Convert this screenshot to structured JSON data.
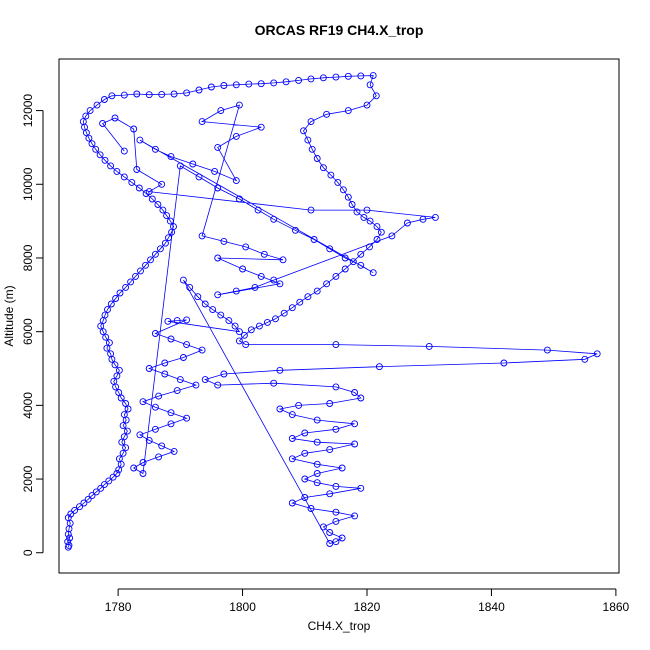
{
  "chart_data": {
    "type": "scatter",
    "title": "ORCAS RF19 CH4.X_trop",
    "xlabel": "CH4.X_trop",
    "ylabel": "Altitude (m)",
    "xlim": [
      1770.5,
      1860.5
    ],
    "ylim": [
      -550,
      13400
    ],
    "xticks": [
      1780,
      1800,
      1820,
      1840,
      1860
    ],
    "yticks": [
      0,
      2000,
      4000,
      6000,
      8000,
      10000,
      12000
    ],
    "color": "#0000ff",
    "grid": false,
    "series": [
      {
        "name": "",
        "points": [
          [
            1772.0,
            150
          ],
          [
            1772.1,
            200
          ],
          [
            1771.9,
            300
          ],
          [
            1772.2,
            400
          ],
          [
            1772.0,
            500
          ],
          [
            1772.1,
            650
          ],
          [
            1772.3,
            800
          ],
          [
            1772.0,
            950
          ],
          [
            1772.4,
            1050
          ],
          [
            1773.0,
            1150
          ],
          [
            1773.8,
            1250
          ],
          [
            1774.5,
            1350
          ],
          [
            1775.2,
            1450
          ],
          [
            1775.8,
            1550
          ],
          [
            1776.5,
            1650
          ],
          [
            1777.2,
            1750
          ],
          [
            1777.8,
            1850
          ],
          [
            1778.5,
            1950
          ],
          [
            1779.2,
            2050
          ],
          [
            1779.8,
            2150
          ],
          [
            1780.1,
            2250
          ],
          [
            1780.5,
            2400
          ],
          [
            1780.2,
            2550
          ],
          [
            1780.8,
            2700
          ],
          [
            1781.2,
            2850
          ],
          [
            1780.6,
            3000
          ],
          [
            1781.0,
            3150
          ],
          [
            1781.5,
            3300
          ],
          [
            1780.8,
            3450
          ],
          [
            1781.3,
            3600
          ],
          [
            1781.0,
            3750
          ],
          [
            1781.6,
            3900
          ],
          [
            1781.2,
            4050
          ],
          [
            1780.5,
            4200
          ],
          [
            1780.1,
            4350
          ],
          [
            1779.6,
            4500
          ],
          [
            1779.3,
            4650
          ],
          [
            1779.8,
            4800
          ],
          [
            1780.2,
            4950
          ],
          [
            1779.5,
            5100
          ],
          [
            1779.0,
            5250
          ],
          [
            1778.8,
            5400
          ],
          [
            1778.2,
            5550
          ],
          [
            1778.6,
            5700
          ],
          [
            1778.0,
            5850
          ],
          [
            1777.6,
            6000
          ],
          [
            1777.2,
            6150
          ],
          [
            1777.6,
            6300
          ],
          [
            1777.9,
            6450
          ],
          [
            1778.3,
            6600
          ],
          [
            1778.9,
            6750
          ],
          [
            1779.6,
            6900
          ],
          [
            1780.3,
            7050
          ],
          [
            1781.2,
            7200
          ],
          [
            1782.0,
            7350
          ],
          [
            1782.8,
            7500
          ],
          [
            1783.6,
            7650
          ],
          [
            1784.4,
            7800
          ],
          [
            1785.2,
            7950
          ],
          [
            1786.0,
            8100
          ],
          [
            1786.8,
            8250
          ],
          [
            1787.6,
            8400
          ],
          [
            1788.1,
            8550
          ],
          [
            1788.6,
            8700
          ],
          [
            1788.9,
            8850
          ],
          [
            1788.4,
            9000
          ],
          [
            1787.8,
            9150
          ],
          [
            1787.2,
            9300
          ],
          [
            1786.4,
            9450
          ],
          [
            1785.5,
            9600
          ],
          [
            1784.5,
            9750
          ],
          [
            1783.4,
            9900
          ],
          [
            1782.2,
            10050
          ],
          [
            1781.0,
            10200
          ],
          [
            1779.8,
            10350
          ],
          [
            1778.8,
            10500
          ],
          [
            1777.9,
            10650
          ],
          [
            1777.1,
            10800
          ],
          [
            1776.4,
            10950
          ],
          [
            1775.8,
            11100
          ],
          [
            1775.3,
            11250
          ],
          [
            1774.9,
            11400
          ],
          [
            1774.6,
            11550
          ],
          [
            1774.4,
            11700
          ],
          [
            1774.8,
            11850
          ],
          [
            1775.5,
            12000
          ],
          [
            1776.6,
            12150
          ],
          [
            1777.8,
            12300
          ],
          [
            1779.0,
            12400
          ],
          [
            1781.0,
            12420
          ],
          [
            1783.0,
            12450
          ],
          [
            1785.0,
            12430
          ],
          [
            1787.0,
            12440
          ],
          [
            1789.0,
            12450
          ],
          [
            1791.0,
            12480
          ],
          [
            1793.0,
            12560
          ],
          [
            1795.0,
            12640
          ],
          [
            1797.0,
            12680
          ],
          [
            1799.0,
            12700
          ],
          [
            1801.0,
            12720
          ],
          [
            1803.0,
            12730
          ],
          [
            1805.0,
            12750
          ],
          [
            1807.0,
            12780
          ],
          [
            1809.0,
            12820
          ],
          [
            1811.0,
            12860
          ],
          [
            1813.0,
            12890
          ],
          [
            1815.0,
            12910
          ],
          [
            1817.0,
            12930
          ],
          [
            1819.0,
            12940
          ],
          [
            1821.0,
            12950
          ],
          [
            1820.5,
            12700
          ],
          [
            1821.5,
            12400
          ],
          [
            1820.0,
            12150
          ],
          [
            1817.0,
            12000
          ],
          [
            1813.5,
            11900
          ],
          [
            1811.0,
            11700
          ],
          [
            1809.8,
            11450
          ],
          [
            1810.5,
            11200
          ],
          [
            1811.2,
            10950
          ],
          [
            1812.0,
            10700
          ],
          [
            1813.0,
            10450
          ],
          [
            1814.2,
            10250
          ],
          [
            1815.3,
            10050
          ],
          [
            1816.2,
            9850
          ],
          [
            1817.0,
            9650
          ],
          [
            1817.6,
            9450
          ],
          [
            1818.4,
            9250
          ],
          [
            1819.5,
            9100
          ],
          [
            1820.5,
            9000
          ],
          [
            1821.6,
            8850
          ],
          [
            1822.3,
            8700
          ],
          [
            1821.6,
            8500
          ],
          [
            1820.4,
            8300
          ],
          [
            1819.0,
            8100
          ],
          [
            1817.8,
            7900
          ],
          [
            1816.5,
            7700
          ],
          [
            1815.0,
            7500
          ],
          [
            1813.5,
            7300
          ],
          [
            1812.0,
            7100
          ],
          [
            1810.5,
            6950
          ],
          [
            1809.2,
            6800
          ],
          [
            1808.0,
            6650
          ],
          [
            1806.7,
            6500
          ],
          [
            1805.3,
            6350
          ],
          [
            1804.0,
            6250
          ],
          [
            1802.7,
            6150
          ],
          [
            1801.4,
            6050
          ],
          [
            1800.3,
            5900
          ],
          [
            1799.5,
            5750
          ],
          [
            1800.5,
            5650
          ],
          [
            1815.0,
            5650
          ],
          [
            1830.0,
            5600
          ],
          [
            1849.0,
            5500
          ],
          [
            1857.0,
            5400
          ],
          [
            1855.0,
            5250
          ],
          [
            1842.0,
            5150
          ],
          [
            1822.0,
            5050
          ],
          [
            1806.0,
            4950
          ],
          [
            1797.0,
            4850
          ],
          [
            1794.0,
            4700
          ],
          [
            1796.0,
            4550
          ],
          [
            1805.0,
            4600
          ],
          [
            1815.0,
            4500
          ],
          [
            1818.0,
            4350
          ],
          [
            1819.0,
            4200
          ],
          [
            1814.0,
            4050
          ],
          [
            1809.0,
            4000
          ],
          [
            1806.0,
            3900
          ],
          [
            1808.0,
            3750
          ],
          [
            1812.0,
            3600
          ],
          [
            1818.0,
            3500
          ],
          [
            1815.0,
            3350
          ],
          [
            1810.0,
            3250
          ],
          [
            1808.0,
            3100
          ],
          [
            1812.0,
            3000
          ],
          [
            1818.0,
            2950
          ],
          [
            1814.0,
            2800
          ],
          [
            1810.0,
            2700
          ],
          [
            1808.0,
            2550
          ],
          [
            1812.0,
            2400
          ],
          [
            1816.0,
            2300
          ],
          [
            1812.0,
            2150
          ],
          [
            1810.0,
            2000
          ],
          [
            1812.0,
            1900
          ],
          [
            1815.0,
            1800
          ],
          [
            1819.0,
            1750
          ],
          [
            1814.0,
            1600
          ],
          [
            1810.0,
            1500
          ],
          [
            1808.0,
            1350
          ],
          [
            1811.0,
            1200
          ],
          [
            1815.0,
            1100
          ],
          [
            1818.0,
            1000
          ],
          [
            1815.0,
            850
          ],
          [
            1813.0,
            700
          ],
          [
            1814.0,
            550
          ],
          [
            1816.0,
            400
          ],
          [
            1815.0,
            300
          ],
          [
            1814.0,
            250
          ],
          [
            1790.5,
            7400
          ],
          [
            1791.5,
            7200
          ],
          [
            1792.8,
            6950
          ],
          [
            1794.0,
            6750
          ],
          [
            1795.2,
            6600
          ],
          [
            1796.5,
            6450
          ],
          [
            1797.8,
            6300
          ],
          [
            1798.8,
            6150
          ],
          [
            1799.5,
            6000
          ],
          [
            1788.0,
            6280
          ],
          [
            1789.5,
            6300
          ],
          [
            1791.0,
            6320
          ],
          [
            1786.0,
            5950
          ],
          [
            1788.5,
            5800
          ],
          [
            1791.0,
            5650
          ],
          [
            1793.5,
            5500
          ],
          [
            1790.5,
            5300
          ],
          [
            1787.5,
            5150
          ],
          [
            1785.0,
            5000
          ],
          [
            1787.5,
            4850
          ],
          [
            1790.0,
            4700
          ],
          [
            1792.5,
            4550
          ],
          [
            1789.5,
            4400
          ],
          [
            1786.5,
            4250
          ],
          [
            1784.0,
            4100
          ],
          [
            1786.0,
            3950
          ],
          [
            1788.5,
            3800
          ],
          [
            1791.0,
            3650
          ],
          [
            1788.5,
            3500
          ],
          [
            1786.0,
            3350
          ],
          [
            1783.5,
            3200
          ],
          [
            1785.0,
            3050
          ],
          [
            1787.0,
            2900
          ],
          [
            1789.0,
            2750
          ],
          [
            1786.5,
            2600
          ],
          [
            1784.0,
            2450
          ],
          [
            1782.5,
            2300
          ],
          [
            1784.0,
            2150
          ],
          [
            1790.0,
            10500
          ],
          [
            1793.0,
            10200
          ],
          [
            1796.0,
            9900
          ],
          [
            1799.5,
            9600
          ],
          [
            1802.5,
            9300
          ],
          [
            1805.0,
            9050
          ],
          [
            1808.5,
            8750
          ],
          [
            1811.5,
            8500
          ],
          [
            1814.0,
            8250
          ],
          [
            1816.5,
            8000
          ],
          [
            1819.0,
            7800
          ],
          [
            1821.0,
            7600
          ],
          [
            1783.5,
            11200
          ],
          [
            1786.0,
            10950
          ],
          [
            1788.5,
            10750
          ],
          [
            1792.0,
            10550
          ],
          [
            1795.5,
            10350
          ],
          [
            1799.0,
            10100
          ],
          [
            1796.0,
            11000
          ],
          [
            1799.0,
            11300
          ],
          [
            1803.0,
            11550
          ],
          [
            1793.5,
            11700
          ],
          [
            1796.5,
            12000
          ],
          [
            1799.5,
            12150
          ],
          [
            1793.5,
            8600
          ],
          [
            1797.0,
            8450
          ],
          [
            1800.5,
            8300
          ],
          [
            1803.5,
            8100
          ],
          [
            1806.5,
            7950
          ],
          [
            1796.0,
            8000
          ],
          [
            1800.0,
            7700
          ],
          [
            1803.0,
            7500
          ],
          [
            1806.0,
            7300
          ],
          [
            1796.0,
            7000
          ],
          [
            1799.0,
            7100
          ],
          [
            1802.0,
            7200
          ],
          [
            1805.0,
            7400
          ],
          [
            1824.0,
            8600
          ],
          [
            1826.5,
            8950
          ],
          [
            1829.0,
            9050
          ],
          [
            1831.0,
            9100
          ],
          [
            1820.0,
            9300
          ],
          [
            1811.0,
            9300
          ],
          [
            1785.0,
            9800
          ],
          [
            1787.0,
            10000
          ],
          [
            1783.0,
            10400
          ],
          [
            1782.5,
            11500
          ],
          [
            1779.5,
            11800
          ],
          [
            1777.5,
            11650
          ],
          [
            1781.0,
            10900
          ]
        ]
      }
    ]
  }
}
